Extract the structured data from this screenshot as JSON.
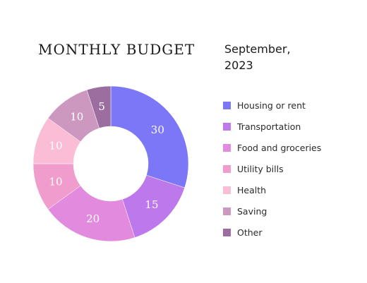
{
  "header": {
    "title": "MONTHLY BUDGET",
    "subtitle_line1": "September,",
    "subtitle_line2": "2023"
  },
  "chart_data": {
    "type": "pie",
    "variant": "donut",
    "title": "MONTHLY BUDGET",
    "subtitle": "September, 2023",
    "legend_position": "right",
    "categories": [
      "Housing or rent",
      "Transportation",
      "Food and groceries",
      "Utility bills",
      "Health",
      "Saving",
      "Other"
    ],
    "values": [
      30,
      15,
      20,
      10,
      10,
      10,
      5
    ],
    "colors": [
      "#7b77f7",
      "#bd79ec",
      "#e18ade",
      "#f09ccd",
      "#fbbcd6",
      "#cc98c0",
      "#9c6e9f"
    ]
  }
}
